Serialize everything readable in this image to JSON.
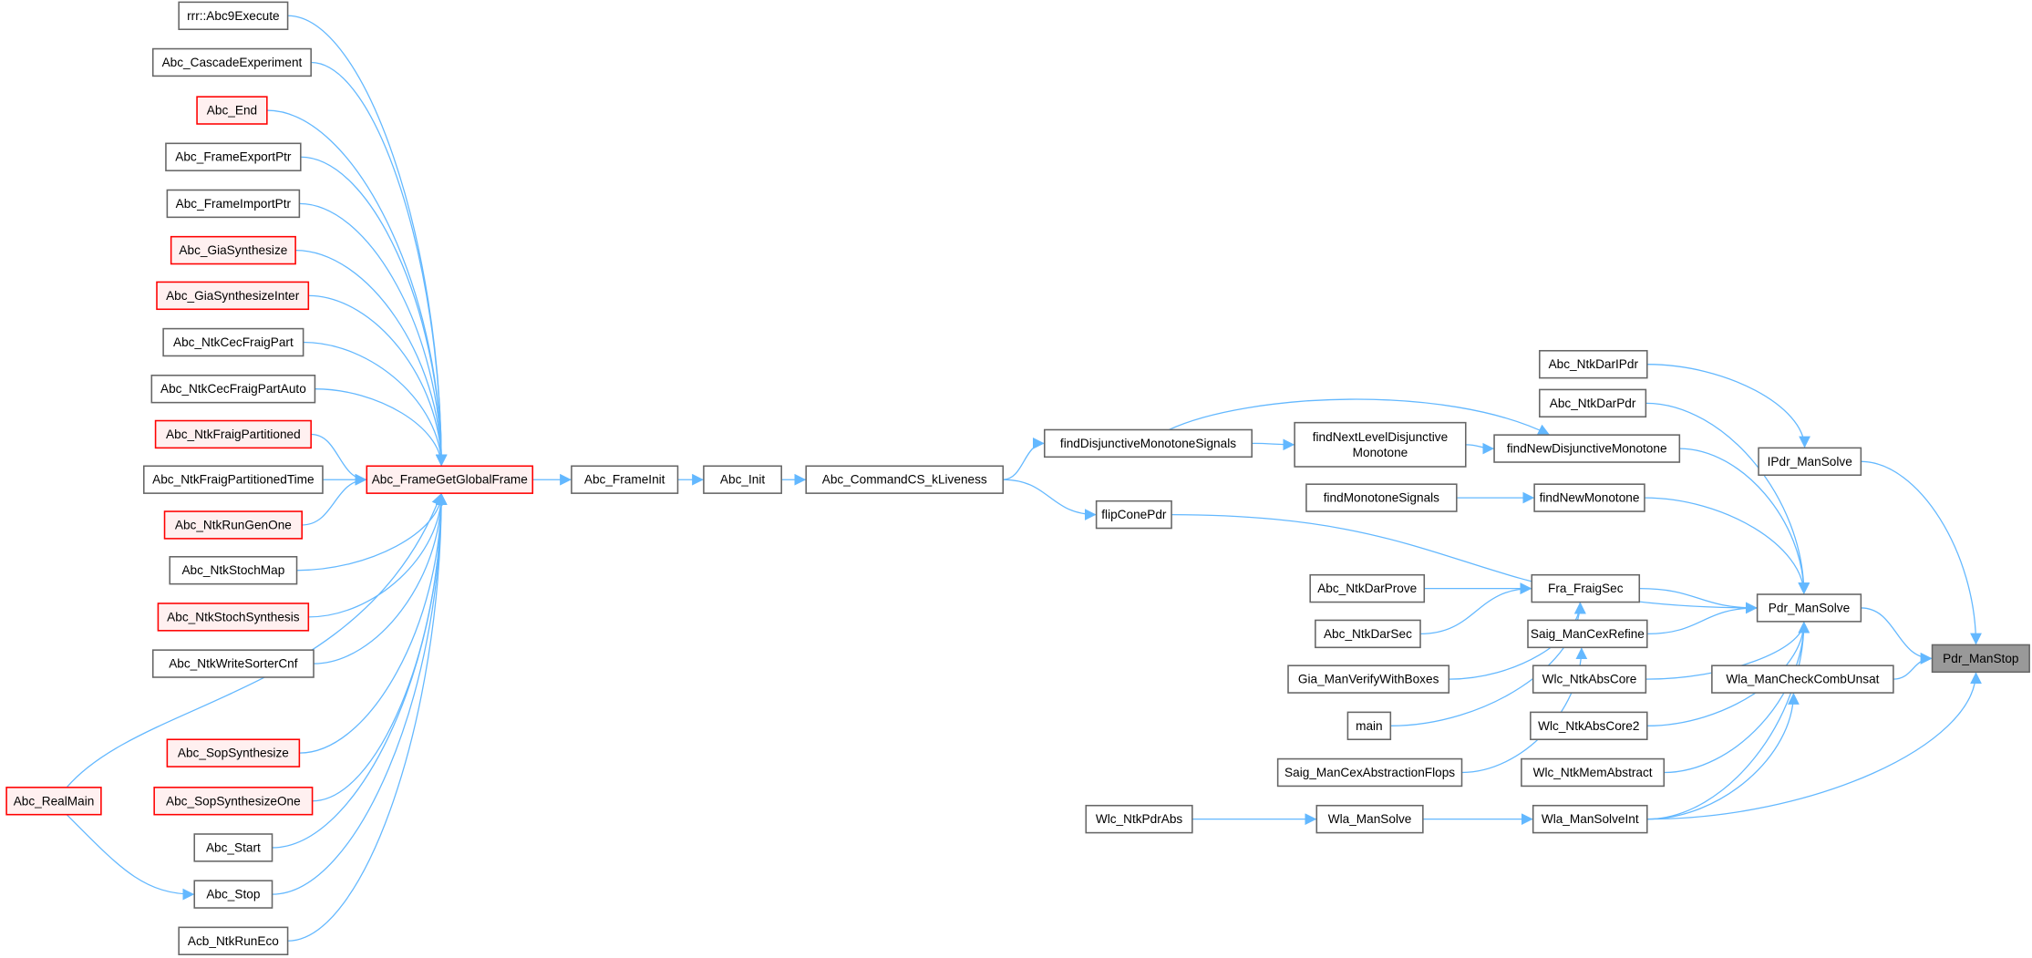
{
  "graph": {
    "colors": {
      "edge": "#63b8ff",
      "node_border": "#666666",
      "red_border": "#ff0000",
      "red_fill": "#fff0f0",
      "current_fill": "#999999"
    },
    "nodes": [
      {
        "label": "rrr::Abc9Execute",
        "style": "normal"
      },
      {
        "label": "Abc_CascadeExperiment",
        "style": "normal"
      },
      {
        "label": "Abc_End",
        "style": "red"
      },
      {
        "label": "Abc_FrameExportPtr",
        "style": "normal"
      },
      {
        "label": "Abc_FrameImportPtr",
        "style": "normal"
      },
      {
        "label": "Abc_GiaSynthesize",
        "style": "red"
      },
      {
        "label": "Abc_GiaSynthesizeInter",
        "style": "red"
      },
      {
        "label": "Abc_NtkCecFraigPart",
        "style": "normal"
      },
      {
        "label": "Abc_NtkCecFraigPartAuto",
        "style": "normal"
      },
      {
        "label": "Abc_NtkFraigPartitioned",
        "style": "red"
      },
      {
        "label": "Abc_NtkFraigPartitionedTime",
        "style": "normal"
      },
      {
        "label": "Abc_NtkRunGenOne",
        "style": "red"
      },
      {
        "label": "Abc_NtkStochMap",
        "style": "normal"
      },
      {
        "label": "Abc_NtkStochSynthesis",
        "style": "red"
      },
      {
        "label": "Abc_NtkWriteSorterCnf",
        "style": "normal"
      },
      {
        "label": "Abc_SopSynthesize",
        "style": "red"
      },
      {
        "label": "Abc_SopSynthesizeOne",
        "style": "red"
      },
      {
        "label": "Abc_Start",
        "style": "normal"
      },
      {
        "label": "Abc_Stop",
        "style": "normal"
      },
      {
        "label": "Acb_NtkRunEco",
        "style": "normal"
      },
      {
        "label": "Abc_RealMain",
        "style": "red"
      },
      {
        "label": "Abc_FrameGetGlobalFrame",
        "style": "red"
      },
      {
        "label": "Abc_FrameInit",
        "style": "normal"
      },
      {
        "label": "Abc_Init",
        "style": "normal"
      },
      {
        "label": "Abc_CommandCS_kLiveness",
        "style": "normal"
      },
      {
        "label": "findDisjunctiveMonotoneSignals",
        "style": "normal"
      },
      {
        "lines": [
          "findNextLevelDisjunctive",
          "Monotone"
        ],
        "style": "normal"
      },
      {
        "label": "findNewDisjunctiveMonotone",
        "style": "normal"
      },
      {
        "label": "flipConePdr",
        "style": "normal"
      },
      {
        "label": "findMonotoneSignals",
        "style": "normal"
      },
      {
        "label": "findNewMonotone",
        "style": "normal"
      },
      {
        "label": "Abc_NtkDarIPdr",
        "style": "normal"
      },
      {
        "label": "Abc_NtkDarPdr",
        "style": "normal"
      },
      {
        "label": "IPdr_ManSolve",
        "style": "normal"
      },
      {
        "label": "Abc_NtkDarProve",
        "style": "normal"
      },
      {
        "label": "Abc_NtkDarSec",
        "style": "normal"
      },
      {
        "label": "Gia_ManVerifyWithBoxes",
        "style": "normal"
      },
      {
        "label": "main",
        "style": "normal"
      },
      {
        "label": "Saig_ManCexAbstractionFlops",
        "style": "normal"
      },
      {
        "label": "Fra_FraigSec",
        "style": "normal"
      },
      {
        "label": "Saig_ManCexRefine",
        "style": "normal"
      },
      {
        "label": "Wlc_NtkAbsCore",
        "style": "normal"
      },
      {
        "label": "Wlc_NtkAbsCore2",
        "style": "normal"
      },
      {
        "label": "Wlc_NtkMemAbstract",
        "style": "normal"
      },
      {
        "label": "Wla_ManSolveInt",
        "style": "normal"
      },
      {
        "label": "Wla_ManSolve",
        "style": "normal"
      },
      {
        "label": "Wlc_NtkPdrAbs",
        "style": "normal"
      },
      {
        "label": "Pdr_ManSolve",
        "style": "normal"
      },
      {
        "label": "Wla_ManCheckCombUnsat",
        "style": "normal"
      },
      {
        "label": "Pdr_ManStop",
        "style": "current"
      }
    ],
    "edges": [
      [
        "rrr::Abc9Execute",
        "Abc_FrameGetGlobalFrame"
      ],
      [
        "Abc_CascadeExperiment",
        "Abc_FrameGetGlobalFrame"
      ],
      [
        "Abc_End",
        "Abc_FrameGetGlobalFrame"
      ],
      [
        "Abc_FrameExportPtr",
        "Abc_FrameGetGlobalFrame"
      ],
      [
        "Abc_FrameImportPtr",
        "Abc_FrameGetGlobalFrame"
      ],
      [
        "Abc_GiaSynthesize",
        "Abc_FrameGetGlobalFrame"
      ],
      [
        "Abc_GiaSynthesizeInter",
        "Abc_FrameGetGlobalFrame"
      ],
      [
        "Abc_NtkCecFraigPart",
        "Abc_FrameGetGlobalFrame"
      ],
      [
        "Abc_NtkCecFraigPartAuto",
        "Abc_FrameGetGlobalFrame"
      ],
      [
        "Abc_NtkFraigPartitioned",
        "Abc_FrameGetGlobalFrame"
      ],
      [
        "Abc_NtkFraigPartitionedTime",
        "Abc_FrameGetGlobalFrame"
      ],
      [
        "Abc_NtkRunGenOne",
        "Abc_FrameGetGlobalFrame"
      ],
      [
        "Abc_NtkStochMap",
        "Abc_FrameGetGlobalFrame"
      ],
      [
        "Abc_NtkStochSynthesis",
        "Abc_FrameGetGlobalFrame"
      ],
      [
        "Abc_NtkWriteSorterCnf",
        "Abc_FrameGetGlobalFrame"
      ],
      [
        "Abc_SopSynthesize",
        "Abc_FrameGetGlobalFrame"
      ],
      [
        "Abc_SopSynthesizeOne",
        "Abc_FrameGetGlobalFrame"
      ],
      [
        "Abc_Start",
        "Abc_FrameGetGlobalFrame"
      ],
      [
        "Abc_Stop",
        "Abc_FrameGetGlobalFrame"
      ],
      [
        "Acb_NtkRunEco",
        "Abc_FrameGetGlobalFrame"
      ],
      [
        "Abc_RealMain",
        "Abc_FrameGetGlobalFrame"
      ],
      [
        "Abc_RealMain",
        "Abc_Stop"
      ],
      [
        "Abc_FrameGetGlobalFrame",
        "Abc_FrameInit"
      ],
      [
        "Abc_FrameInit",
        "Abc_Init"
      ],
      [
        "Abc_Init",
        "Abc_CommandCS_kLiveness"
      ],
      [
        "Abc_CommandCS_kLiveness",
        "findDisjunctiveMonotoneSignals"
      ],
      [
        "Abc_CommandCS_kLiveness",
        "flipConePdr"
      ],
      [
        "findDisjunctiveMonotoneSignals",
        "findNextLevelDisjunctiveMonotone"
      ],
      [
        "findDisjunctiveMonotoneSignals",
        "findNewDisjunctiveMonotone"
      ],
      [
        "findNextLevelDisjunctiveMonotone",
        "findNewDisjunctiveMonotone"
      ],
      [
        "findMonotoneSignals",
        "findNewMonotone"
      ],
      [
        "Abc_NtkDarIPdr",
        "IPdr_ManSolve"
      ],
      [
        "Abc_NtkDarPdr",
        "Pdr_ManSolve"
      ],
      [
        "findNewDisjunctiveMonotone",
        "Pdr_ManSolve"
      ],
      [
        "findNewMonotone",
        "Pdr_ManSolve"
      ],
      [
        "flipConePdr",
        "Pdr_ManSolve"
      ],
      [
        "Abc_NtkDarProve",
        "Fra_FraigSec"
      ],
      [
        "Abc_NtkDarSec",
        "Fra_FraigSec"
      ],
      [
        "Gia_ManVerifyWithBoxes",
        "Fra_FraigSec"
      ],
      [
        "main",
        "Fra_FraigSec"
      ],
      [
        "Saig_ManCexAbstractionFlops",
        "Saig_ManCexRefine"
      ],
      [
        "Fra_FraigSec",
        "Pdr_ManSolve"
      ],
      [
        "Saig_ManCexRefine",
        "Pdr_ManSolve"
      ],
      [
        "Wlc_NtkAbsCore",
        "Pdr_ManSolve"
      ],
      [
        "Wlc_NtkAbsCore2",
        "Pdr_ManSolve"
      ],
      [
        "Wlc_NtkMemAbstract",
        "Pdr_ManSolve"
      ],
      [
        "Wla_ManSolveInt",
        "Pdr_ManSolve"
      ],
      [
        "Wlc_NtkPdrAbs",
        "Wla_ManSolve"
      ],
      [
        "Wla_ManSolve",
        "Wla_ManSolveInt"
      ],
      [
        "Wla_ManSolveInt",
        "Wla_ManCheckCombUnsat"
      ],
      [
        "Wla_ManSolveInt",
        "Pdr_ManStop"
      ],
      [
        "Pdr_ManSolve",
        "Pdr_ManStop"
      ],
      [
        "Wla_ManCheckCombUnsat",
        "Pdr_ManStop"
      ],
      [
        "IPdr_ManSolve",
        "Pdr_ManStop"
      ]
    ]
  }
}
